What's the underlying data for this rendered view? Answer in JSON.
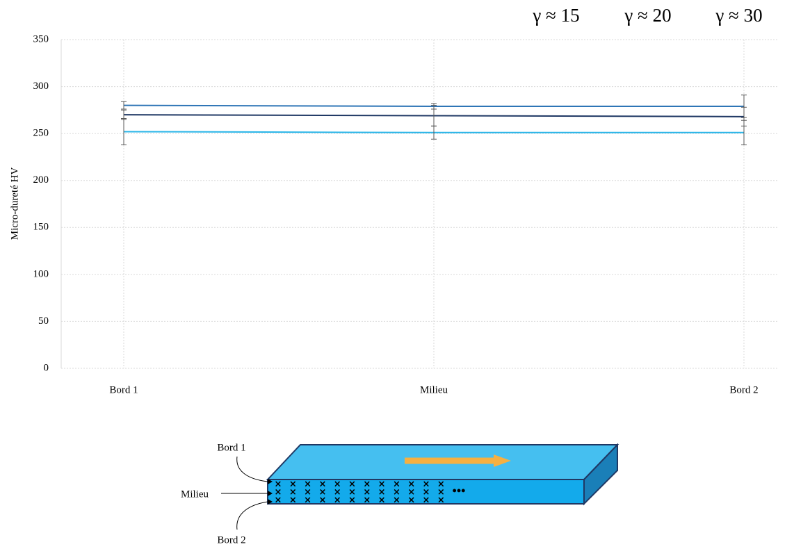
{
  "chart_data": {
    "type": "line",
    "y_label": "Micro-dureté HV",
    "categories": [
      "Bord 1",
      "Milieu",
      "Bord 2"
    ],
    "series": [
      {
        "name": "γ ≈ 15",
        "color": "#29b5e8",
        "values": [
          252,
          251,
          251
        ],
        "errors": [
          14,
          7,
          13
        ]
      },
      {
        "name": "γ ≈ 20",
        "color": "#2e75b6",
        "values": [
          280,
          279,
          279
        ],
        "errors": [
          4,
          3,
          12
        ]
      },
      {
        "name": "γ ≈ 30",
        "color": "#1f3864",
        "values": [
          270,
          269,
          268
        ],
        "errors": [
          5,
          11,
          10
        ]
      }
    ],
    "ylim": [
      0,
      350
    ],
    "yticks": [
      0,
      50,
      100,
      150,
      200,
      250,
      300,
      350
    ],
    "grid": true,
    "legend": "top-right"
  },
  "diagram": {
    "labels": [
      "Bord 1",
      "Milieu",
      "Bord 2"
    ]
  }
}
